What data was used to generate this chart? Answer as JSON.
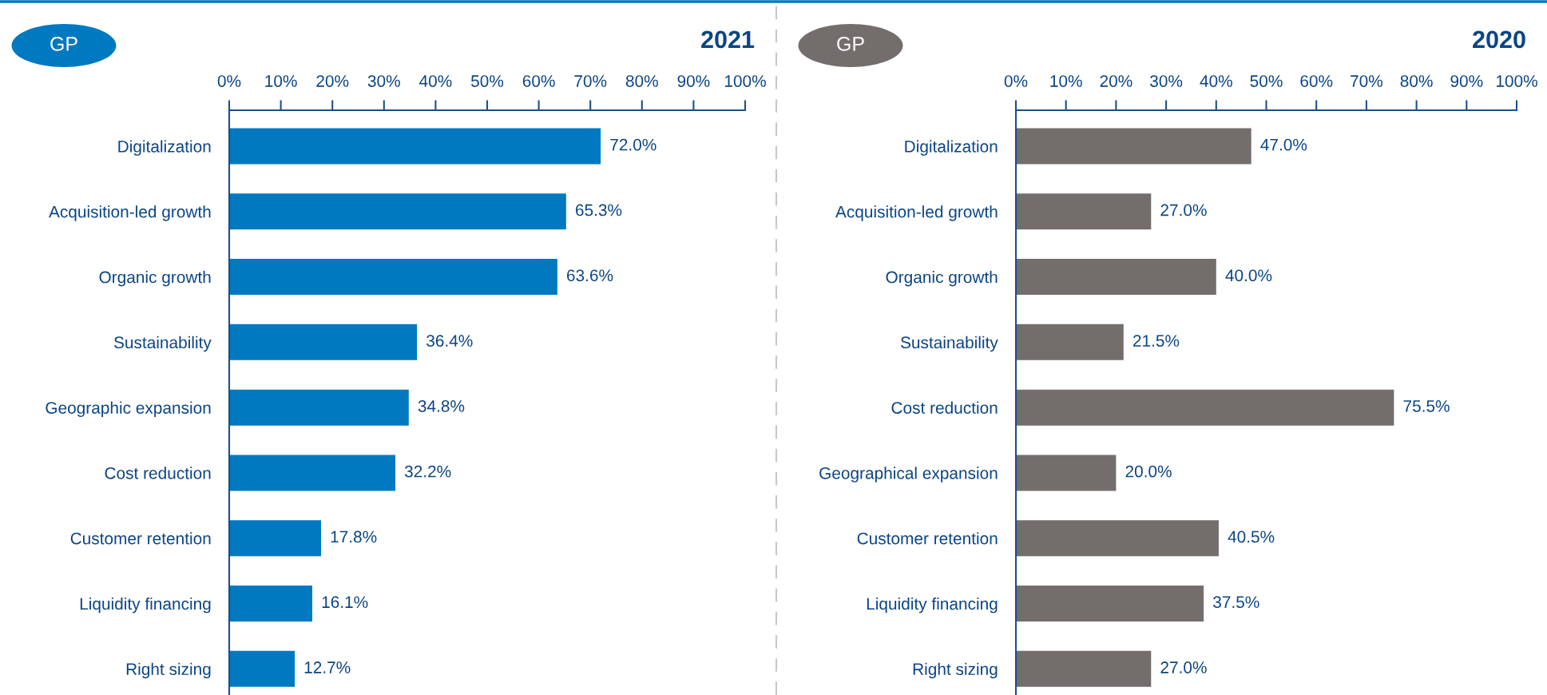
{
  "chart_data": [
    {
      "type": "bar",
      "orientation": "horizontal",
      "title": "2021",
      "subtitle": "GP",
      "categories": [
        "Digitalization",
        "Acquisition-led growth",
        "Organic growth",
        "Sustainability",
        "Geographic expansion",
        "Cost reduction",
        "Customer retention",
        "Liquidity financing",
        "Right sizing"
      ],
      "values": [
        72.0,
        65.3,
        63.6,
        36.4,
        34.8,
        32.2,
        17.8,
        16.1,
        12.7
      ],
      "color": "#0079c1",
      "value_labels": [
        "72.0%",
        "65.3%",
        "63.6%",
        "36.4%",
        "34.8%",
        "32.2%",
        "17.8%",
        "16.1%",
        "12.7%"
      ],
      "xlim": [
        0,
        100
      ],
      "xticks": [
        {
          "value": 0,
          "label": "0%"
        },
        {
          "value": 10,
          "label": "10%"
        },
        {
          "value": 20,
          "label": "20%"
        },
        {
          "value": 30,
          "label": "30%"
        },
        {
          "value": 40,
          "label": "40%"
        },
        {
          "value": 50,
          "label": "50%"
        },
        {
          "value": 60,
          "label": "60%"
        },
        {
          "value": 70,
          "label": "70%"
        },
        {
          "value": 80,
          "label": "80%"
        },
        {
          "value": 90,
          "label": "90%"
        },
        {
          "value": 100,
          "label": "100%"
        }
      ]
    },
    {
      "type": "bar",
      "orientation": "horizontal",
      "title": "2020",
      "subtitle": "GP",
      "categories": [
        "Digitalization",
        "Acquisition-led growth",
        "Organic growth",
        "Sustainability",
        "Cost reduction",
        "Geographical expansion",
        "Customer retention",
        "Liquidity financing",
        "Right sizing"
      ],
      "values": [
        47.0,
        27.0,
        40.0,
        21.5,
        75.5,
        20.0,
        40.5,
        37.5,
        27.0
      ],
      "color": "#736e6c",
      "value_labels": [
        "47.0%",
        "27.0%",
        "40.0%",
        "21.5%",
        "75.5%",
        "20.0%",
        "40.5%",
        "37.5%",
        "27.0%"
      ],
      "xlim": [
        0,
        100
      ],
      "xticks": [
        {
          "value": 0,
          "label": "0%"
        },
        {
          "value": 10,
          "label": "10%"
        },
        {
          "value": 20,
          "label": "20%"
        },
        {
          "value": 30,
          "label": "30%"
        },
        {
          "value": 40,
          "label": "40%"
        },
        {
          "value": 50,
          "label": "50%"
        },
        {
          "value": 60,
          "label": "60%"
        },
        {
          "value": 70,
          "label": "70%"
        },
        {
          "value": 80,
          "label": "80%"
        },
        {
          "value": 90,
          "label": "90%"
        },
        {
          "value": 100,
          "label": "100%"
        }
      ]
    }
  ]
}
